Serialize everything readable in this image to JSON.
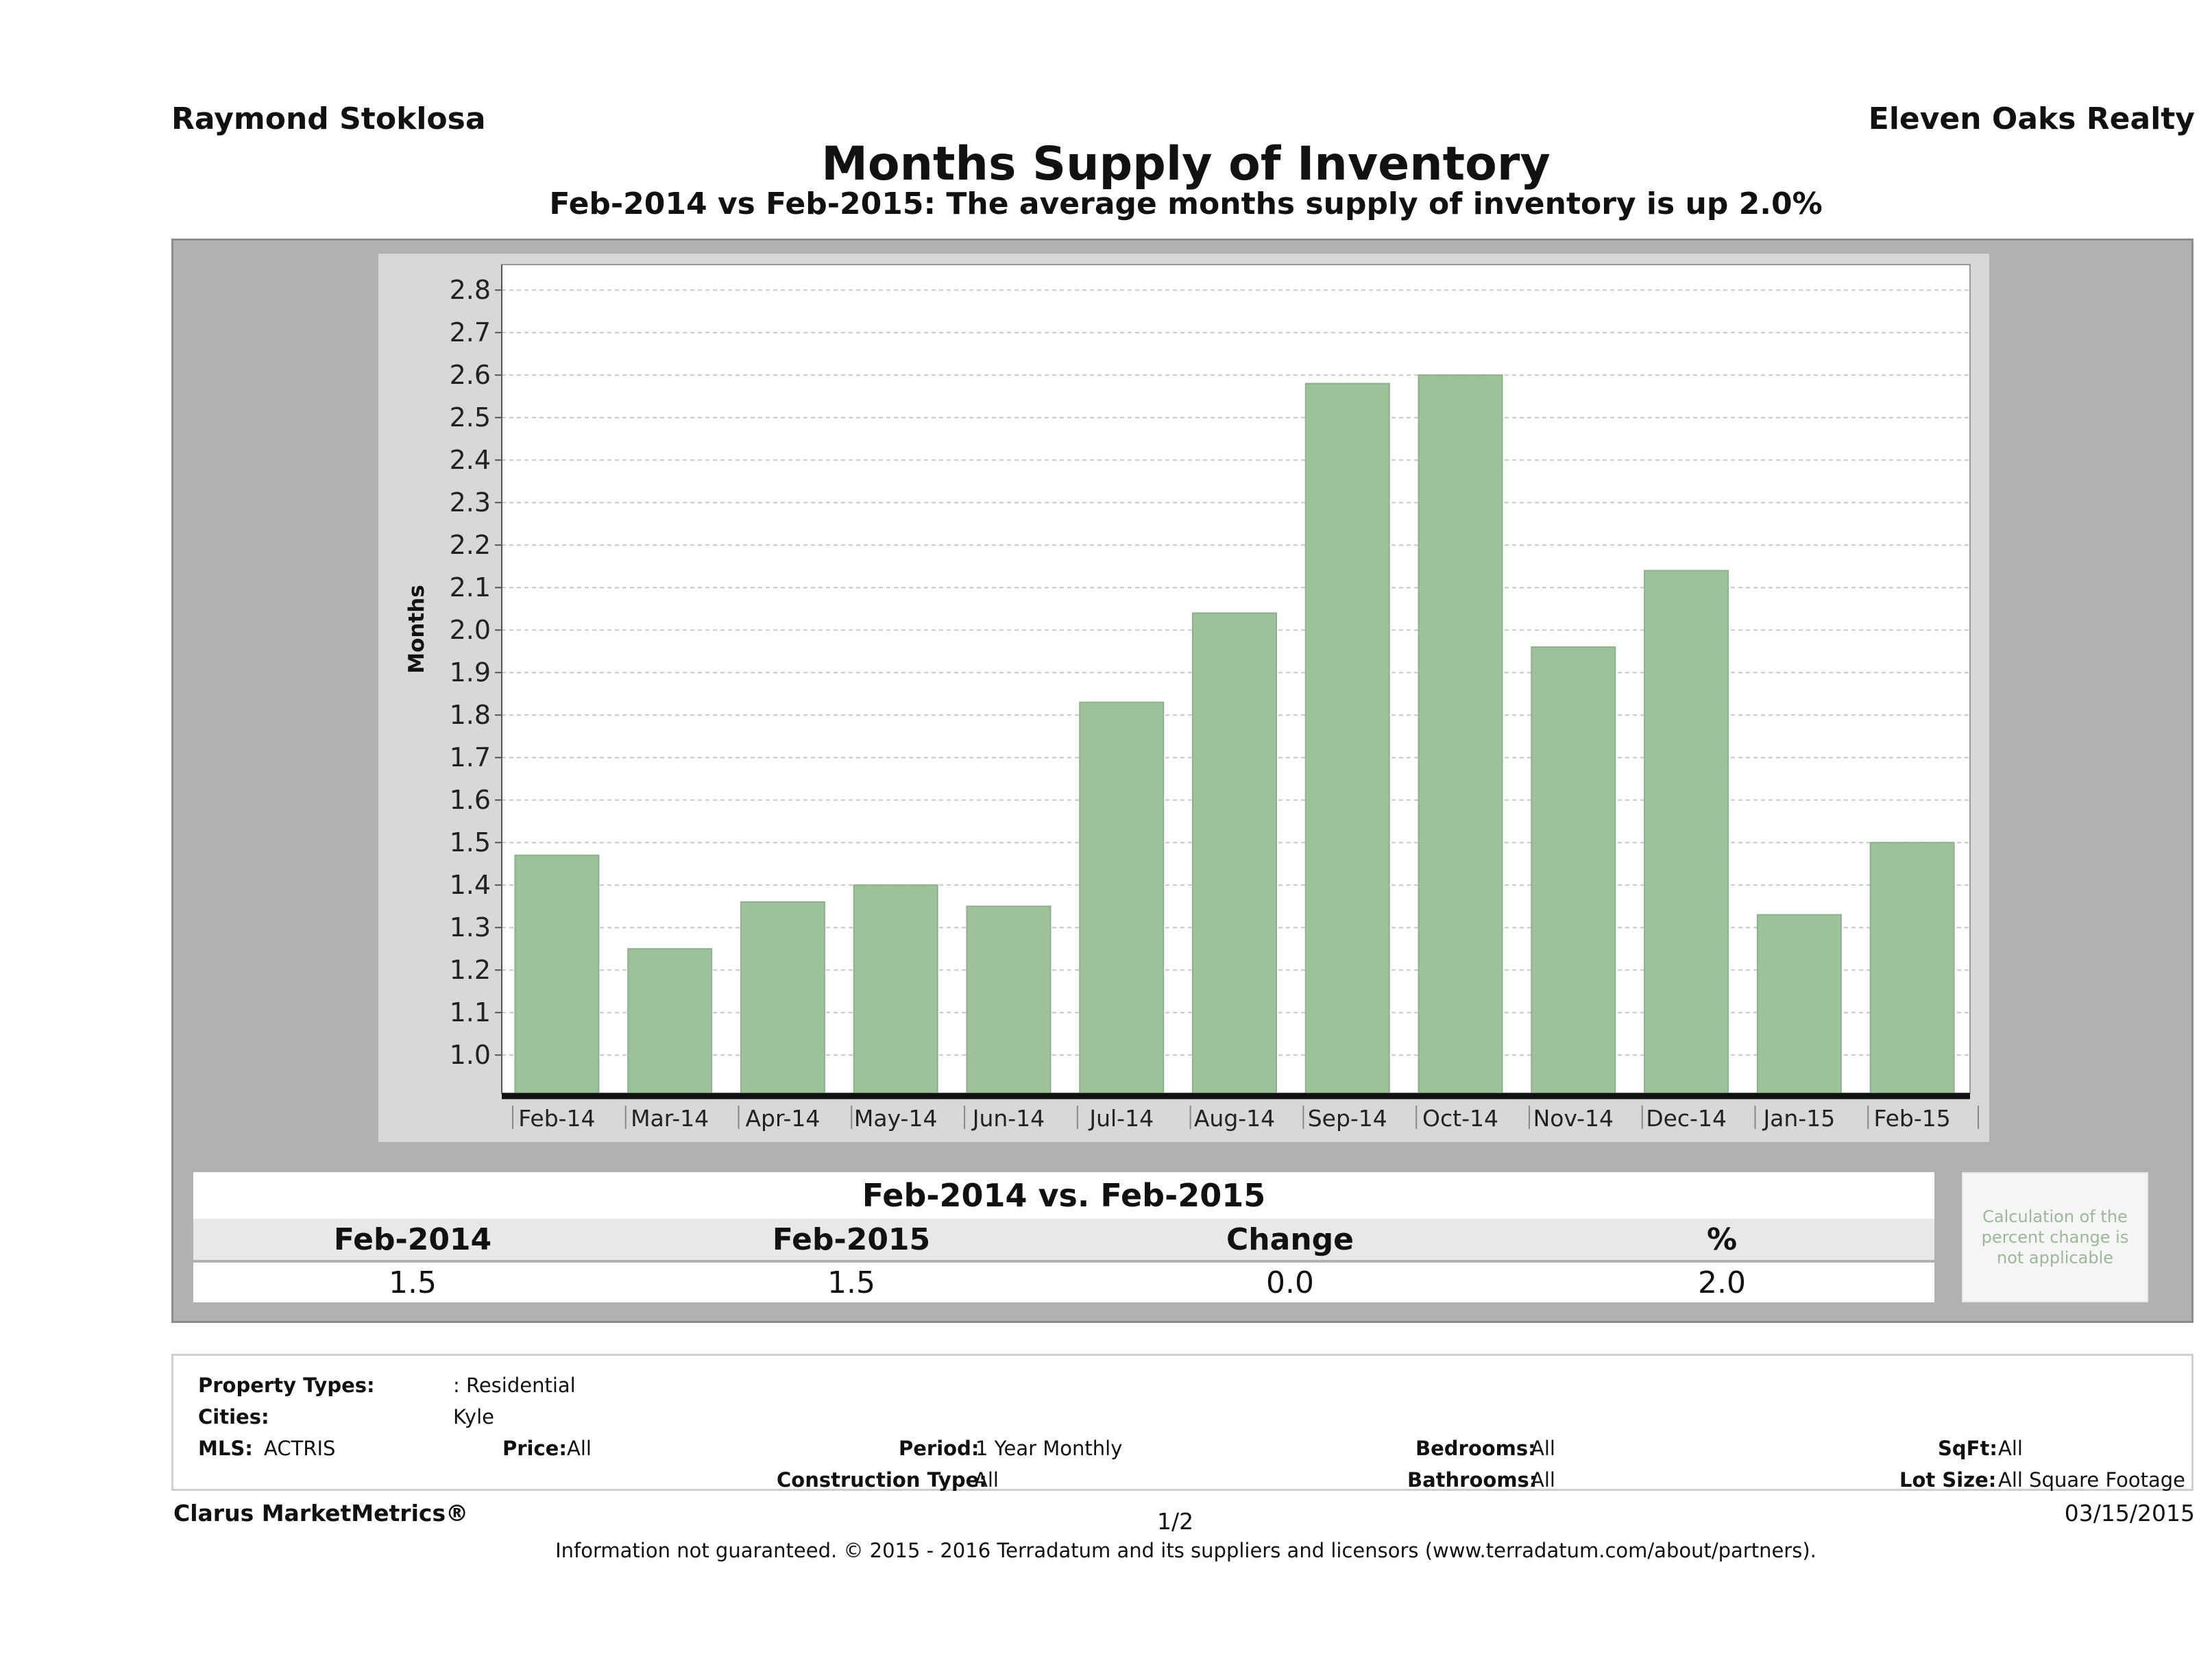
{
  "header": {
    "agent": "Raymond Stoklosa",
    "broker": "Eleven Oaks Realty",
    "title": "Months Supply of Inventory",
    "subtitle": "Feb-2014 vs Feb-2015: The average months supply of inventory is up 2.0%"
  },
  "chart_data": {
    "type": "bar",
    "categories": [
      "Feb-14",
      "Mar-14",
      "Apr-14",
      "May-14",
      "Jun-14",
      "Jul-14",
      "Aug-14",
      "Sep-14",
      "Oct-14",
      "Nov-14",
      "Dec-14",
      "Jan-15",
      "Feb-15"
    ],
    "values": [
      1.47,
      1.25,
      1.36,
      1.4,
      1.35,
      1.83,
      2.04,
      2.58,
      2.6,
      1.96,
      2.14,
      1.33,
      1.5
    ],
    "ylabel": "Months",
    "ylim": [
      0.91,
      2.86
    ],
    "yticks": [
      "1.0",
      "1.1",
      "1.2",
      "1.3",
      "1.4",
      "1.5",
      "1.6",
      "1.7",
      "1.8",
      "1.9",
      "2.0",
      "2.1",
      "2.2",
      "2.3",
      "2.4",
      "2.5",
      "2.6",
      "2.7",
      "2.8"
    ],
    "grid": true,
    "bar_color": "#9dc29a"
  },
  "summary": {
    "title": "Feb-2014 vs. Feb-2015",
    "headers": [
      "Feb-2014",
      "Feb-2015",
      "Change",
      "%"
    ],
    "values": [
      "1.5",
      "1.5",
      "0.0",
      "2.0"
    ],
    "note": "Calculation of the percent change is not applicable"
  },
  "criteria": {
    "property_types_label": "Property Types:",
    "property_types": ": Residential",
    "cities_label": "Cities:",
    "cities": "Kyle",
    "mls_label": "MLS:",
    "mls": "ACTRIS",
    "price_label": "Price:",
    "price": "All",
    "period_label": "Period:",
    "period": "1 Year Monthly",
    "construction_label": "Construction Type:",
    "construction": "All",
    "bedrooms_label": "Bedrooms:",
    "bedrooms": "All",
    "bathrooms_label": "Bathrooms:",
    "bathrooms": "All",
    "sqft_label": "SqFt:",
    "sqft": "All",
    "lotsize_label": "Lot Size:",
    "lotsize": "All Square Footage"
  },
  "footer": {
    "brand": "Clarus MarketMetrics®",
    "page": "1/2",
    "date": "03/15/2015",
    "disclaimer": "Information not guaranteed. © 2015 - 2016 Terradatum and its suppliers and licensors (www.terradatum.com/about/partners)."
  }
}
